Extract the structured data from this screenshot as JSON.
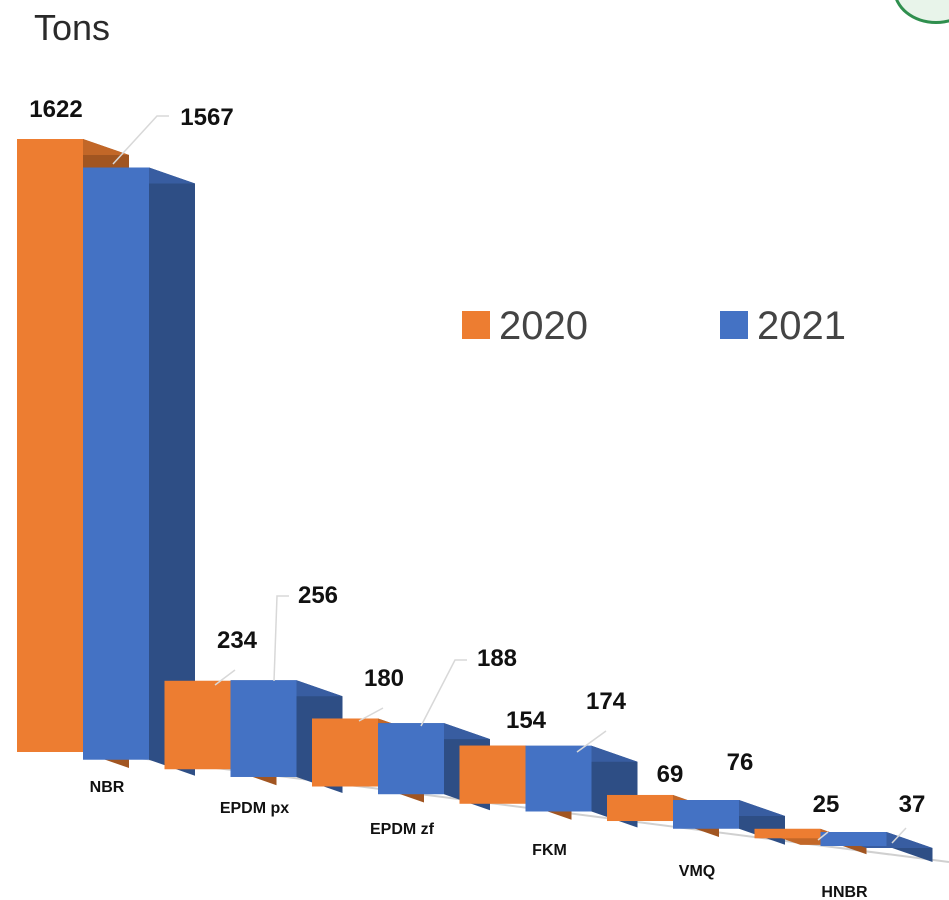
{
  "chart_data": {
    "type": "bar",
    "subtype": "3d-clustered-column",
    "ylabel": "Tons",
    "categories": [
      "NBR",
      "EPDM px",
      "EPDM zf",
      "FKM",
      "VMQ",
      "HNBR"
    ],
    "series": [
      {
        "name": "2020",
        "values": [
          1622,
          234,
          180,
          154,
          69,
          25
        ],
        "color": "#ED7D31"
      },
      {
        "name": "2021",
        "values": [
          1567,
          256,
          188,
          174,
          76,
          37
        ],
        "color": "#4472C4"
      }
    ],
    "data_labels": true,
    "legend_position": "right",
    "grid": false
  }
}
